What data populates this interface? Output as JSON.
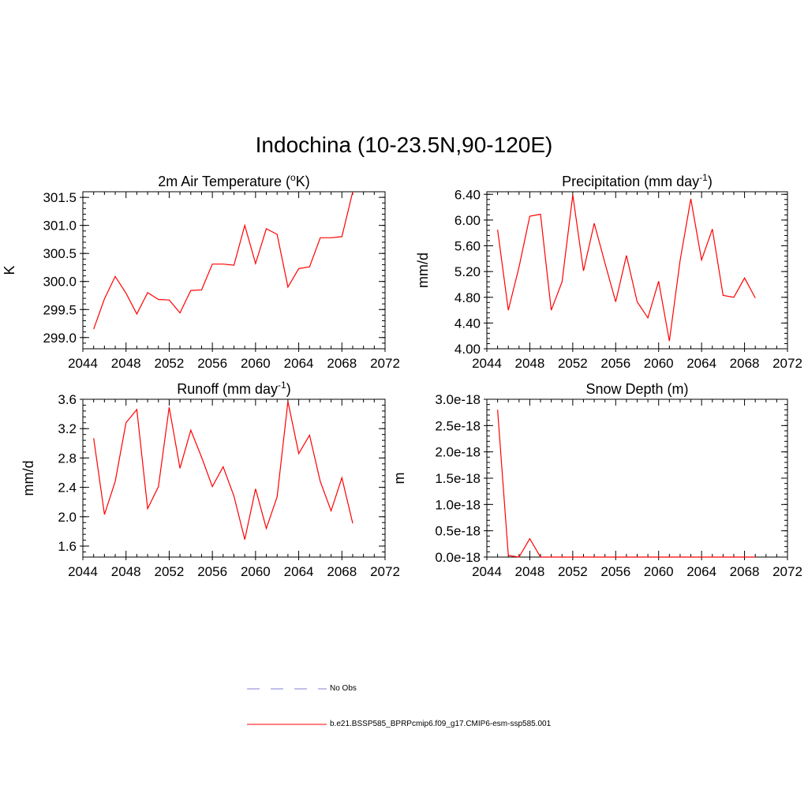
{
  "title": "Indochina (10-23.5N,90-120E)",
  "panels": {
    "temperature": {
      "title_main": "2m Air Temperature (",
      "title_sup": "o",
      "title_end": "K)",
      "ylabel": "K"
    },
    "precip": {
      "title_main": "Precipitation (mm day",
      "title_sup": "-1",
      "title_end": ")",
      "ylabel": "mm/d"
    },
    "runoff": {
      "title_main": "Runoff (mm day",
      "title_sup": "-1",
      "title_end": ")",
      "ylabel": "mm/d"
    },
    "snow": {
      "title_main": "Snow Depth (m)",
      "title_sup": "",
      "title_end": "",
      "ylabel": "m"
    }
  },
  "legend": {
    "obs_label": "No Obs",
    "obs_color": "#9999dd",
    "model_label": "b.e21.BSSP585_BPRPcmip6.f09_g17.CMIP6-esm-ssp585.001",
    "model_color": "#ff0000"
  },
  "chart_data": [
    {
      "type": "line",
      "title": "2m Air Temperature (oK)",
      "ylabel": "K",
      "xlim": [
        2044,
        2072
      ],
      "ylim": [
        298.8,
        301.6
      ],
      "xticks": [
        "2044",
        "2048",
        "2052",
        "2056",
        "2060",
        "2064",
        "2068",
        "2072"
      ],
      "yticks": [
        "299.0",
        "299.5",
        "300.0",
        "300.5",
        "301.0",
        "301.5"
      ],
      "color": "#ff0000",
      "x": [
        2045,
        2046,
        2047,
        2048,
        2049,
        2050,
        2051,
        2052,
        2053,
        2054,
        2055,
        2056,
        2057,
        2058,
        2059,
        2060,
        2061,
        2062,
        2063,
        2064,
        2065,
        2066,
        2067,
        2068,
        2069
      ],
      "y": [
        299.15,
        299.69,
        300.09,
        299.79,
        299.42,
        299.8,
        299.68,
        299.67,
        299.44,
        299.84,
        299.85,
        300.31,
        300.31,
        300.29,
        301.0,
        300.32,
        300.94,
        300.84,
        299.9,
        300.23,
        300.26,
        300.78,
        300.78,
        300.8,
        301.6
      ]
    },
    {
      "type": "line",
      "title": "Precipitation (mm day-1)",
      "ylabel": "mm/d",
      "xlim": [
        2044,
        2072
      ],
      "ylim": [
        4.0,
        6.44
      ],
      "xticks": [
        "2044",
        "2048",
        "2052",
        "2056",
        "2060",
        "2064",
        "2068",
        "2072"
      ],
      "yticks": [
        "4.00",
        "4.40",
        "4.80",
        "5.20",
        "5.60",
        "6.00",
        "6.40"
      ],
      "color": "#ff0000",
      "x": [
        2045,
        2046,
        2047,
        2048,
        2049,
        2050,
        2051,
        2052,
        2053,
        2054,
        2055,
        2056,
        2057,
        2058,
        2059,
        2060,
        2061,
        2062,
        2063,
        2064,
        2065,
        2066,
        2067,
        2068,
        2069
      ],
      "y": [
        5.85,
        4.6,
        5.27,
        6.06,
        6.09,
        4.6,
        5.04,
        6.39,
        5.21,
        5.95,
        5.33,
        4.73,
        5.45,
        4.73,
        4.48,
        5.05,
        4.12,
        5.37,
        6.33,
        5.38,
        5.86,
        4.83,
        4.8,
        5.1,
        4.79
      ]
    },
    {
      "type": "line",
      "title": "Runoff (mm day-1)",
      "ylabel": "mm/d",
      "xlim": [
        2044,
        2072
      ],
      "ylim": [
        1.45,
        3.6
      ],
      "xticks": [
        "2044",
        "2048",
        "2052",
        "2056",
        "2060",
        "2064",
        "2068",
        "2072"
      ],
      "yticks": [
        "1.6",
        "2.0",
        "2.4",
        "2.8",
        "3.2",
        "3.6"
      ],
      "color": "#ff0000",
      "x": [
        2045,
        2046,
        2047,
        2048,
        2049,
        2050,
        2051,
        2052,
        2053,
        2054,
        2055,
        2056,
        2057,
        2058,
        2059,
        2060,
        2061,
        2062,
        2063,
        2064,
        2065,
        2066,
        2067,
        2068,
        2069
      ],
      "y": [
        3.07,
        2.03,
        2.48,
        3.28,
        3.46,
        2.11,
        2.41,
        3.49,
        2.66,
        3.18,
        2.81,
        2.41,
        2.68,
        2.28,
        1.69,
        2.38,
        1.84,
        2.27,
        3.57,
        2.86,
        3.11,
        2.48,
        2.08,
        2.53,
        1.91
      ]
    },
    {
      "type": "line",
      "title": "Snow Depth (m)",
      "ylabel": "m",
      "xlim": [
        2044,
        2072
      ],
      "ylim": [
        0,
        3e-18
      ],
      "xticks": [
        "2044",
        "2048",
        "2052",
        "2056",
        "2060",
        "2064",
        "2068",
        "2072"
      ],
      "yticks": [
        "0.0e-18",
        "0.5e-18",
        "1.0e-18",
        "1.5e-18",
        "2.0e-18",
        "2.5e-18",
        "3.0e-18"
      ],
      "color": "#ff0000",
      "x": [
        2045,
        2046,
        2047,
        2048,
        2049,
        2050,
        2051,
        2052,
        2053,
        2054,
        2055,
        2056,
        2057,
        2058,
        2059,
        2060,
        2061,
        2062,
        2063,
        2064,
        2065,
        2066,
        2067,
        2068,
        2069
      ],
      "y": [
        2.8e-18,
        3e-20,
        0,
        3.5e-19,
        0,
        0,
        0,
        0,
        0,
        0,
        0,
        0,
        0,
        0,
        0,
        0,
        0,
        0,
        0,
        0,
        0,
        0,
        0,
        0,
        0
      ]
    }
  ]
}
